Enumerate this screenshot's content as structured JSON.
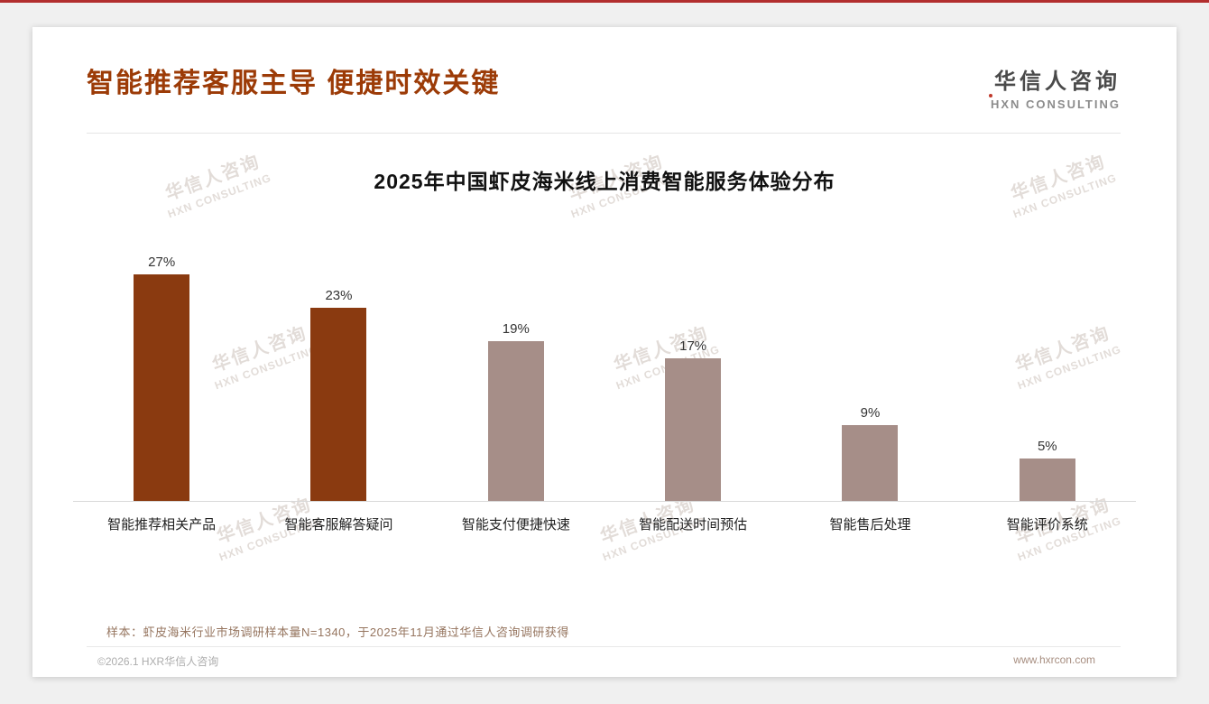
{
  "page": {
    "header": {
      "title": "智能推荐客服主导 便捷时效关键",
      "logo": {
        "cn": "华信人咨询",
        "en": "HXN CONSULTING"
      }
    },
    "watermark": {
      "line1": "华信人咨询",
      "line2": "HXN CONSULTING"
    },
    "footnote": "样本：虾皮海米行业市场调研样本量N=1340，于2025年11月通过华信人咨询调研获得",
    "footer": {
      "copyright": "©2026.1 HXR华信人咨询",
      "website": "www.hxrcon.com"
    }
  },
  "chart_data": {
    "type": "bar",
    "title": "2025年中国虾皮海米线上消费智能服务体验分布",
    "categories": [
      "智能推荐相关产品",
      "智能客服解答疑问",
      "智能支付便捷快速",
      "智能配送时间预估",
      "智能售后处理",
      "智能评价系统"
    ],
    "values": [
      27,
      23,
      19,
      17,
      9,
      5
    ],
    "value_labels": [
      "27%",
      "23%",
      "19%",
      "17%",
      "9%",
      "5%"
    ],
    "bar_colors": [
      "#8A3A10",
      "#8A3A10",
      "#A68E88",
      "#A68E88",
      "#A68E88",
      "#A68E88"
    ],
    "series_colors": {
      "highlight": "#8A3A10",
      "normal": "#A68E88"
    },
    "xlabel": "",
    "ylabel": "",
    "ylim": [
      0,
      30
    ],
    "grid": false,
    "legend": false
  }
}
